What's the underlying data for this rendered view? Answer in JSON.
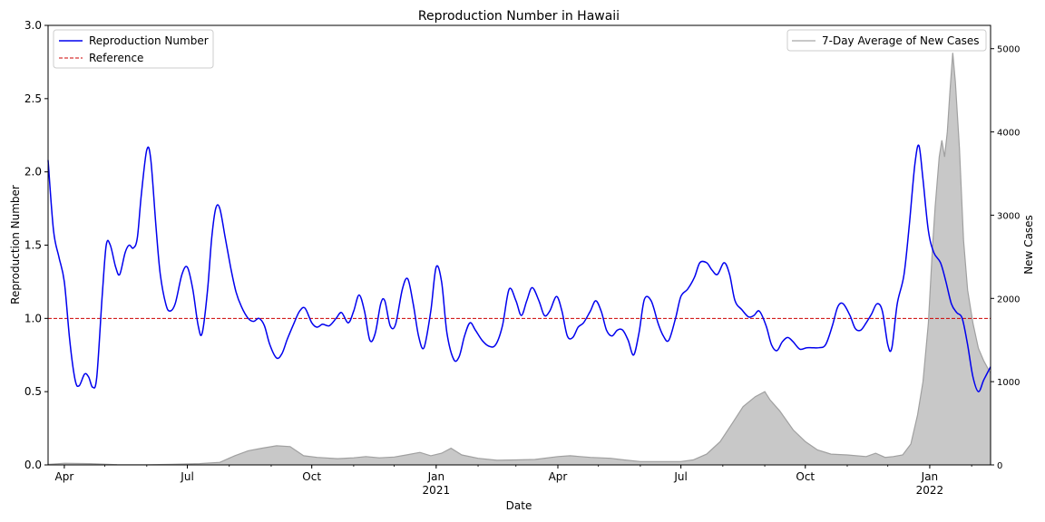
{
  "chart_data": {
    "type": "line",
    "title": "Reproduction Number in Hawaii",
    "xlabel": "Date",
    "ylabel": "Reproduction Number",
    "y2label": "New Cases",
    "x_range": [
      "2020-03-20",
      "2022-02-15"
    ],
    "ylim": [
      0,
      3.0
    ],
    "y2lim": [
      0,
      5280
    ],
    "yticks": [
      "0.0",
      "0.5",
      "1.0",
      "1.5",
      "2.0",
      "2.5",
      "3.0"
    ],
    "y2ticks": [
      "0",
      "1000",
      "2000",
      "3000",
      "4000",
      "5000"
    ],
    "xticks": [
      {
        "date": "2020-04-01",
        "label": "Apr",
        "sub": ""
      },
      {
        "date": "2020-07-01",
        "label": "Jul",
        "sub": ""
      },
      {
        "date": "2020-10-01",
        "label": "Oct",
        "sub": ""
      },
      {
        "date": "2021-01-01",
        "label": "Jan",
        "sub": "2021"
      },
      {
        "date": "2021-04-01",
        "label": "Apr",
        "sub": ""
      },
      {
        "date": "2021-07-01",
        "label": "Jul",
        "sub": ""
      },
      {
        "date": "2021-10-01",
        "label": "Oct",
        "sub": ""
      },
      {
        "date": "2022-01-01",
        "label": "Jan",
        "sub": "2022"
      }
    ],
    "reference_value": 1.0,
    "legend_left": [
      "Reproduction Number",
      "Reference"
    ],
    "legend_right": [
      "7-Day Average of New Cases"
    ],
    "colors": {
      "rt": "#0000ee",
      "reference": "#cc0000",
      "cases_fill": "#c8c8c8",
      "cases_line": "#a0a0a0"
    },
    "series": [
      {
        "name": "Reproduction Number",
        "points": [
          [
            "2020-03-20",
            2.08
          ],
          [
            "2020-03-24",
            1.6
          ],
          [
            "2020-03-28",
            1.42
          ],
          [
            "2020-04-01",
            1.25
          ],
          [
            "2020-04-05",
            0.85
          ],
          [
            "2020-04-09",
            0.58
          ],
          [
            "2020-04-12",
            0.54
          ],
          [
            "2020-04-16",
            0.62
          ],
          [
            "2020-04-19",
            0.6
          ],
          [
            "2020-04-22",
            0.53
          ],
          [
            "2020-04-25",
            0.6
          ],
          [
            "2020-04-29",
            1.15
          ],
          [
            "2020-05-02",
            1.5
          ],
          [
            "2020-05-05",
            1.5
          ],
          [
            "2020-05-09",
            1.35
          ],
          [
            "2020-05-12",
            1.3
          ],
          [
            "2020-05-16",
            1.45
          ],
          [
            "2020-05-19",
            1.5
          ],
          [
            "2020-05-22",
            1.48
          ],
          [
            "2020-05-25",
            1.55
          ],
          [
            "2020-05-28",
            1.85
          ],
          [
            "2020-06-01",
            2.15
          ],
          [
            "2020-06-04",
            2.08
          ],
          [
            "2020-06-08",
            1.6
          ],
          [
            "2020-06-11",
            1.3
          ],
          [
            "2020-06-15",
            1.1
          ],
          [
            "2020-06-18",
            1.05
          ],
          [
            "2020-06-22",
            1.1
          ],
          [
            "2020-06-27",
            1.3
          ],
          [
            "2020-07-01",
            1.35
          ],
          [
            "2020-07-05",
            1.2
          ],
          [
            "2020-07-09",
            0.95
          ],
          [
            "2020-07-12",
            0.9
          ],
          [
            "2020-07-16",
            1.2
          ],
          [
            "2020-07-19",
            1.55
          ],
          [
            "2020-07-22",
            1.75
          ],
          [
            "2020-07-25",
            1.75
          ],
          [
            "2020-07-29",
            1.55
          ],
          [
            "2020-08-02",
            1.35
          ],
          [
            "2020-08-06",
            1.18
          ],
          [
            "2020-08-10",
            1.08
          ],
          [
            "2020-08-15",
            1.0
          ],
          [
            "2020-08-19",
            0.98
          ],
          [
            "2020-08-23",
            1.0
          ],
          [
            "2020-08-27",
            0.95
          ],
          [
            "2020-08-31",
            0.82
          ],
          [
            "2020-09-05",
            0.73
          ],
          [
            "2020-09-09",
            0.76
          ],
          [
            "2020-09-13",
            0.86
          ],
          [
            "2020-09-18",
            0.97
          ],
          [
            "2020-09-22",
            1.05
          ],
          [
            "2020-09-26",
            1.07
          ],
          [
            "2020-10-01",
            0.97
          ],
          [
            "2020-10-05",
            0.94
          ],
          [
            "2020-10-09",
            0.96
          ],
          [
            "2020-10-14",
            0.95
          ],
          [
            "2020-10-19",
            1.0
          ],
          [
            "2020-10-23",
            1.04
          ],
          [
            "2020-10-28",
            0.97
          ],
          [
            "2020-11-01",
            1.05
          ],
          [
            "2020-11-05",
            1.16
          ],
          [
            "2020-11-09",
            1.05
          ],
          [
            "2020-11-13",
            0.85
          ],
          [
            "2020-11-17",
            0.9
          ],
          [
            "2020-11-21",
            1.1
          ],
          [
            "2020-11-24",
            1.12
          ],
          [
            "2020-11-28",
            0.95
          ],
          [
            "2020-12-02",
            0.96
          ],
          [
            "2020-12-07",
            1.2
          ],
          [
            "2020-12-11",
            1.27
          ],
          [
            "2020-12-15",
            1.1
          ],
          [
            "2020-12-19",
            0.88
          ],
          [
            "2020-12-23",
            0.8
          ],
          [
            "2020-12-28",
            1.05
          ],
          [
            "2021-01-01",
            1.35
          ],
          [
            "2021-01-05",
            1.25
          ],
          [
            "2021-01-09",
            0.9
          ],
          [
            "2021-01-14",
            0.72
          ],
          [
            "2021-01-18",
            0.74
          ],
          [
            "2021-01-22",
            0.88
          ],
          [
            "2021-01-26",
            0.97
          ],
          [
            "2021-01-30",
            0.92
          ],
          [
            "2021-02-04",
            0.85
          ],
          [
            "2021-02-09",
            0.81
          ],
          [
            "2021-02-14",
            0.82
          ],
          [
            "2021-02-19",
            0.95
          ],
          [
            "2021-02-24",
            1.2
          ],
          [
            "2021-03-01",
            1.12
          ],
          [
            "2021-03-05",
            1.02
          ],
          [
            "2021-03-09",
            1.12
          ],
          [
            "2021-03-13",
            1.21
          ],
          [
            "2021-03-18",
            1.12
          ],
          [
            "2021-03-22",
            1.02
          ],
          [
            "2021-03-26",
            1.05
          ],
          [
            "2021-03-31",
            1.15
          ],
          [
            "2021-04-04",
            1.05
          ],
          [
            "2021-04-08",
            0.88
          ],
          [
            "2021-04-12",
            0.87
          ],
          [
            "2021-04-16",
            0.94
          ],
          [
            "2021-04-20",
            0.97
          ],
          [
            "2021-04-25",
            1.05
          ],
          [
            "2021-04-29",
            1.12
          ],
          [
            "2021-05-03",
            1.05
          ],
          [
            "2021-05-07",
            0.92
          ],
          [
            "2021-05-11",
            0.88
          ],
          [
            "2021-05-15",
            0.92
          ],
          [
            "2021-05-19",
            0.92
          ],
          [
            "2021-05-23",
            0.85
          ],
          [
            "2021-05-27",
            0.75
          ],
          [
            "2021-05-31",
            0.9
          ],
          [
            "2021-06-04",
            1.13
          ],
          [
            "2021-06-09",
            1.12
          ],
          [
            "2021-06-14",
            0.97
          ],
          [
            "2021-06-18",
            0.88
          ],
          [
            "2021-06-22",
            0.85
          ],
          [
            "2021-06-27",
            1.0
          ],
          [
            "2021-07-01",
            1.15
          ],
          [
            "2021-07-06",
            1.2
          ],
          [
            "2021-07-11",
            1.28
          ],
          [
            "2021-07-15",
            1.38
          ],
          [
            "2021-07-20",
            1.38
          ],
          [
            "2021-07-24",
            1.33
          ],
          [
            "2021-07-28",
            1.3
          ],
          [
            "2021-08-02",
            1.38
          ],
          [
            "2021-08-06",
            1.3
          ],
          [
            "2021-08-10",
            1.12
          ],
          [
            "2021-08-15",
            1.06
          ],
          [
            "2021-08-20",
            1.01
          ],
          [
            "2021-08-24",
            1.02
          ],
          [
            "2021-08-28",
            1.05
          ],
          [
            "2021-09-02",
            0.95
          ],
          [
            "2021-09-06",
            0.82
          ],
          [
            "2021-09-10",
            0.78
          ],
          [
            "2021-09-14",
            0.84
          ],
          [
            "2021-09-18",
            0.87
          ],
          [
            "2021-09-22",
            0.84
          ],
          [
            "2021-09-27",
            0.79
          ],
          [
            "2021-10-02",
            0.8
          ],
          [
            "2021-10-06",
            0.8
          ],
          [
            "2021-10-11",
            0.8
          ],
          [
            "2021-10-16",
            0.82
          ],
          [
            "2021-10-21",
            0.95
          ],
          [
            "2021-10-25",
            1.08
          ],
          [
            "2021-10-29",
            1.1
          ],
          [
            "2021-11-03",
            1.02
          ],
          [
            "2021-11-07",
            0.93
          ],
          [
            "2021-11-11",
            0.92
          ],
          [
            "2021-11-15",
            0.97
          ],
          [
            "2021-11-19",
            1.03
          ],
          [
            "2021-11-23",
            1.1
          ],
          [
            "2021-11-27",
            1.05
          ],
          [
            "2021-12-01",
            0.82
          ],
          [
            "2021-12-04",
            0.8
          ],
          [
            "2021-12-08",
            1.1
          ],
          [
            "2021-12-13",
            1.3
          ],
          [
            "2021-12-17",
            1.65
          ],
          [
            "2021-12-21",
            2.05
          ],
          [
            "2021-12-24",
            2.18
          ],
          [
            "2021-12-27",
            1.95
          ],
          [
            "2021-12-31",
            1.6
          ],
          [
            "2022-01-04",
            1.45
          ],
          [
            "2022-01-09",
            1.38
          ],
          [
            "2022-01-13",
            1.25
          ],
          [
            "2022-01-17",
            1.1
          ],
          [
            "2022-01-21",
            1.04
          ],
          [
            "2022-01-25",
            1.0
          ],
          [
            "2022-01-29",
            0.82
          ],
          [
            "2022-02-02",
            0.6
          ],
          [
            "2022-02-06",
            0.5
          ],
          [
            "2022-02-10",
            0.58
          ],
          [
            "2022-02-15",
            0.67
          ]
        ]
      },
      {
        "name": "7-Day Average of New Cases",
        "points": [
          [
            "2020-03-20",
            5
          ],
          [
            "2020-04-01",
            20
          ],
          [
            "2020-04-20",
            15
          ],
          [
            "2020-05-10",
            3
          ],
          [
            "2020-06-01",
            2
          ],
          [
            "2020-06-20",
            6
          ],
          [
            "2020-07-10",
            15
          ],
          [
            "2020-07-25",
            30
          ],
          [
            "2020-08-05",
            110
          ],
          [
            "2020-08-15",
            170
          ],
          [
            "2020-08-25",
            200
          ],
          [
            "2020-09-05",
            230
          ],
          [
            "2020-09-15",
            220
          ],
          [
            "2020-09-25",
            110
          ],
          [
            "2020-10-05",
            90
          ],
          [
            "2020-10-20",
            75
          ],
          [
            "2020-11-01",
            85
          ],
          [
            "2020-11-10",
            100
          ],
          [
            "2020-11-20",
            85
          ],
          [
            "2020-12-01",
            95
          ],
          [
            "2020-12-10",
            120
          ],
          [
            "2020-12-20",
            150
          ],
          [
            "2020-12-28",
            110
          ],
          [
            "2021-01-05",
            140
          ],
          [
            "2021-01-12",
            200
          ],
          [
            "2021-01-20",
            120
          ],
          [
            "2021-02-01",
            80
          ],
          [
            "2021-02-15",
            55
          ],
          [
            "2021-03-01",
            60
          ],
          [
            "2021-03-15",
            65
          ],
          [
            "2021-04-01",
            100
          ],
          [
            "2021-04-10",
            110
          ],
          [
            "2021-04-25",
            90
          ],
          [
            "2021-05-10",
            80
          ],
          [
            "2021-05-20",
            60
          ],
          [
            "2021-06-01",
            40
          ],
          [
            "2021-06-20",
            40
          ],
          [
            "2021-07-01",
            40
          ],
          [
            "2021-07-10",
            60
          ],
          [
            "2021-07-20",
            130
          ],
          [
            "2021-07-30",
            280
          ],
          [
            "2021-08-08",
            500
          ],
          [
            "2021-08-16",
            700
          ],
          [
            "2021-08-25",
            820
          ],
          [
            "2021-09-01",
            880
          ],
          [
            "2021-09-05",
            780
          ],
          [
            "2021-09-12",
            650
          ],
          [
            "2021-09-22",
            420
          ],
          [
            "2021-10-01",
            280
          ],
          [
            "2021-10-10",
            180
          ],
          [
            "2021-10-20",
            130
          ],
          [
            "2021-11-01",
            120
          ],
          [
            "2021-11-15",
            100
          ],
          [
            "2021-11-22",
            140
          ],
          [
            "2021-11-29",
            90
          ],
          [
            "2021-12-05",
            100
          ],
          [
            "2021-12-12",
            120
          ],
          [
            "2021-12-18",
            250
          ],
          [
            "2021-12-23",
            600
          ],
          [
            "2021-12-27",
            1000
          ],
          [
            "2021-12-31",
            1700
          ],
          [
            "2022-01-03",
            2600
          ],
          [
            "2022-01-05",
            3100
          ],
          [
            "2022-01-08",
            3700
          ],
          [
            "2022-01-10",
            3900
          ],
          [
            "2022-01-12",
            3700
          ],
          [
            "2022-01-14",
            4000
          ],
          [
            "2022-01-16",
            4500
          ],
          [
            "2022-01-18",
            4950
          ],
          [
            "2022-01-20",
            4600
          ],
          [
            "2022-01-23",
            3800
          ],
          [
            "2022-01-26",
            2700
          ],
          [
            "2022-01-29",
            2100
          ],
          [
            "2022-02-02",
            1700
          ],
          [
            "2022-02-06",
            1400
          ],
          [
            "2022-02-10",
            1250
          ],
          [
            "2022-02-15",
            1100
          ]
        ]
      }
    ]
  }
}
